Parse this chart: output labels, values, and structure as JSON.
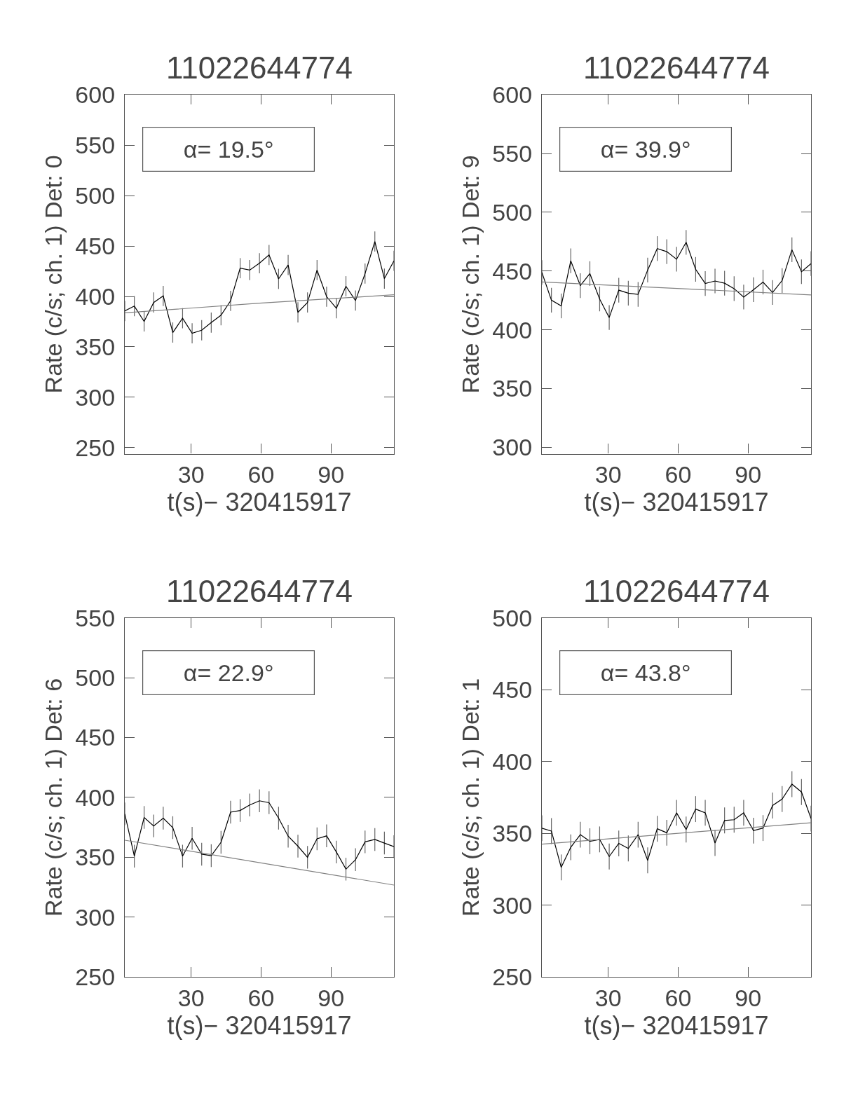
{
  "chart_data": [
    {
      "type": "line",
      "title": "11022644774",
      "xlabel": "t(s)− 320415917",
      "ylabel": "Rate (c/s; ch. 1) Det: 0",
      "annotations": [
        "α= 19.5°"
      ],
      "marker": "none",
      "line_style": "solid",
      "xlim": [
        1.5,
        117
      ],
      "xticks": [
        30,
        60,
        90
      ],
      "ylim": [
        244,
        600
      ],
      "yticks": [
        600,
        550,
        500,
        450,
        400,
        350,
        300,
        250
      ],
      "x": [
        1.5,
        5.6,
        9.8,
        13.9,
        18.0,
        22.1,
        26.3,
        30.4,
        34.5,
        38.6,
        42.8,
        46.9,
        51.0,
        55.1,
        59.3,
        63.4,
        67.5,
        71.6,
        75.8,
        79.9,
        84.0,
        88.1,
        92.3,
        96.4,
        100.5,
        104.6,
        108.8,
        112.9,
        117.0
      ],
      "series": [
        {
          "color": "#000000",
          "values": [
            385.6,
            390.4,
            375.2,
            394.0,
            400.5,
            364.2,
            378.4,
            363.5,
            366.5,
            374.1,
            381.4,
            395.6,
            428.0,
            426.1,
            433.0,
            441.1,
            417.4,
            431.2,
            384.2,
            394.0,
            426.1,
            399.8,
            388.3,
            410.1,
            395.9,
            422.7,
            454.4,
            417.7,
            435.3
          ],
          "errors": [
            10,
            10,
            10,
            10,
            10,
            10,
            10,
            10,
            10,
            10,
            10,
            10,
            10,
            10,
            10,
            10,
            10,
            10,
            10,
            10,
            10,
            10,
            10,
            10,
            10,
            10,
            10,
            10,
            10
          ]
        },
        {
          "type": "line",
          "color": "#808080",
          "x": [
            1.5,
            59.3,
            117
          ],
          "values": [
            383.7,
            393.3,
            401.6
          ]
        }
      ]
    },
    {
      "type": "line",
      "title": "11022644774",
      "xlabel": "t(s)− 320415917",
      "ylabel": "Rate (c/s; ch. 1) Det: 9",
      "annotations": [
        "α= 39.9°"
      ],
      "marker": "none",
      "line_style": "solid",
      "xlim": [
        1.5,
        117
      ],
      "xticks": [
        30,
        60,
        90
      ],
      "ylim": [
        294.5,
        600
      ],
      "yticks": [
        600,
        550,
        500,
        450,
        400,
        350,
        300
      ],
      "x": [
        1.5,
        5.6,
        9.8,
        13.9,
        18.0,
        22.1,
        26.3,
        30.4,
        34.5,
        38.6,
        42.8,
        46.9,
        51.0,
        55.1,
        59.3,
        63.4,
        67.5,
        71.6,
        75.8,
        79.9,
        84.0,
        88.1,
        92.3,
        96.4,
        100.5,
        104.6,
        108.8,
        112.9,
        117.0
      ],
      "series": [
        {
          "color": "#000000",
          "values": [
            448.8,
            425.2,
            420.3,
            458.7,
            437.6,
            447.8,
            426.2,
            410.4,
            433.7,
            431.1,
            430.1,
            450.8,
            469.1,
            466.5,
            460.0,
            474.4,
            451.4,
            439.4,
            441.5,
            439.6,
            435.0,
            427.8,
            434.1,
            440.6,
            431.7,
            441.9,
            468.1,
            449.4,
            456.3
          ],
          "errors": [
            10.5,
            10.5,
            10.5,
            10.5,
            10.5,
            10.5,
            10.5,
            10.5,
            10.5,
            10.5,
            10.5,
            10.5,
            10.5,
            10.5,
            10.5,
            10.5,
            10.5,
            10.5,
            10.5,
            10.5,
            10.5,
            10.5,
            10.5,
            10.5,
            10.5,
            10.5,
            10.5,
            10.5,
            10.5
          ]
        },
        {
          "type": "line",
          "color": "#808080",
          "x": [
            1.5,
            117
          ],
          "values": [
            440.7,
            429.7
          ]
        }
      ]
    },
    {
      "type": "line",
      "title": "11022644774",
      "xlabel": "t(s)− 320415917",
      "ylabel": "Rate (c/s; ch. 1) Det: 6",
      "annotations": [
        "α= 22.9°"
      ],
      "marker": "none",
      "line_style": "solid",
      "xlim": [
        1.5,
        117
      ],
      "xticks": [
        30,
        60,
        90
      ],
      "ylim": [
        250,
        550
      ],
      "yticks": [
        550,
        500,
        450,
        400,
        350,
        300,
        250
      ],
      "x": [
        1.5,
        5.6,
        9.8,
        13.9,
        18.0,
        22.1,
        26.3,
        30.4,
        34.5,
        38.6,
        42.8,
        46.9,
        51.0,
        55.1,
        59.3,
        63.4,
        67.5,
        71.6,
        75.8,
        79.9,
        84.0,
        88.1,
        92.3,
        96.4,
        100.5,
        104.6,
        108.8,
        112.9,
        117.0
      ],
      "series": [
        {
          "color": "#000000",
          "values": [
            386.3,
            351.0,
            383.3,
            376.2,
            382.7,
            374.8,
            351.0,
            365.9,
            352.6,
            351.4,
            362.5,
            387.7,
            389.1,
            393.7,
            397.2,
            395.6,
            382.7,
            367.7,
            359.3,
            350.0,
            365.5,
            367.9,
            354.4,
            340.1,
            348.0,
            362.9,
            364.9,
            361.9,
            358.9
          ],
          "errors": [
            9.5,
            9.5,
            9.5,
            9.5,
            9.5,
            9.5,
            9.5,
            9.5,
            9.5,
            9.5,
            9.5,
            9.5,
            9.5,
            9.5,
            9.5,
            9.5,
            9.5,
            9.5,
            9.5,
            9.5,
            9.5,
            9.5,
            9.5,
            9.5,
            9.5,
            9.5,
            9.5,
            9.5,
            9.5
          ]
        },
        {
          "type": "line",
          "color": "#808080",
          "x": [
            1.5,
            117
          ],
          "values": [
            364.3,
            326.8
          ]
        }
      ]
    },
    {
      "type": "line",
      "title": "11022644774",
      "xlabel": "t(s)− 320415917",
      "ylabel": "Rate (c/s; ch. 1) Det: 1",
      "annotations": [
        "α= 43.8°"
      ],
      "marker": "none",
      "line_style": "solid",
      "xlim": [
        1.5,
        117
      ],
      "xticks": [
        30,
        60,
        90
      ],
      "ylim": [
        250,
        500
      ],
      "yticks": [
        500,
        450,
        400,
        350,
        300,
        250
      ],
      "x": [
        1.5,
        5.6,
        9.8,
        13.9,
        18.0,
        22.1,
        26.3,
        30.4,
        34.5,
        38.6,
        42.8,
        46.9,
        51.0,
        55.1,
        59.3,
        63.4,
        67.5,
        71.6,
        75.8,
        79.9,
        84.0,
        88.1,
        92.3,
        96.4,
        100.5,
        104.6,
        108.8,
        112.9,
        117.0
      ],
      "series": [
        {
          "color": "#000000",
          "values": [
            353.6,
            351.6,
            326.3,
            340.3,
            349.1,
            344.5,
            345.8,
            333.9,
            343.0,
            339.5,
            349.1,
            331.2,
            353.2,
            350.4,
            364.3,
            352.7,
            366.9,
            364.3,
            343.3,
            359.0,
            359.5,
            364.3,
            351.9,
            353.7,
            369.4,
            373.9,
            384.3,
            378.8,
            360.3
          ],
          "errors": [
            9,
            9,
            9,
            9,
            9,
            9,
            9,
            9,
            9,
            9,
            9,
            9,
            9,
            9,
            9,
            9,
            9,
            9,
            9,
            9,
            9,
            9,
            9,
            9,
            9,
            9,
            9,
            9,
            9
          ]
        },
        {
          "type": "line",
          "color": "#808080",
          "x": [
            1.5,
            117
          ],
          "values": [
            342.5,
            357.4
          ]
        }
      ]
    }
  ]
}
